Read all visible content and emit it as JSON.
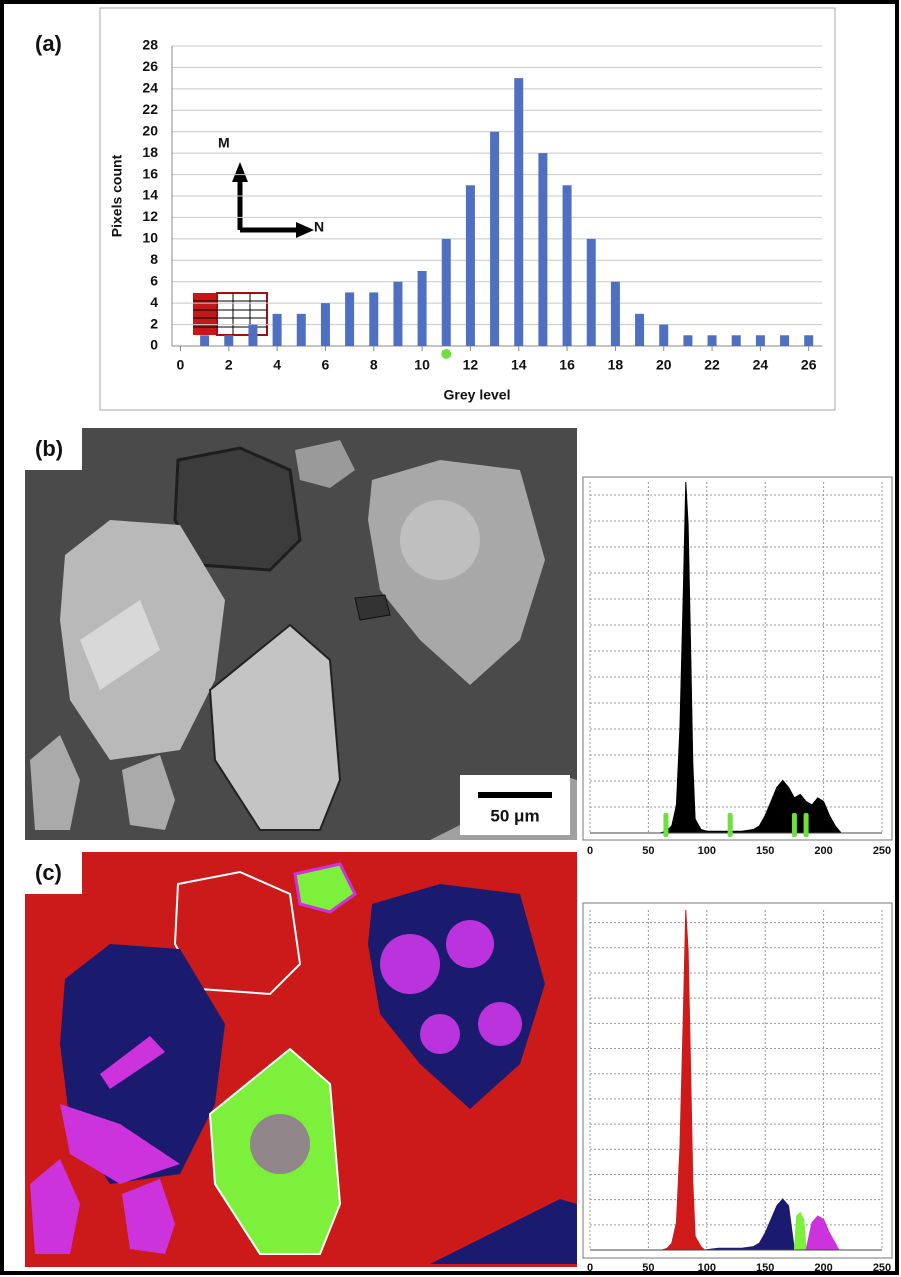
{
  "chart_data": [
    {
      "type": "bar",
      "panel_label": "(a)",
      "xlabel": "Grey level",
      "ylabel": "Pixels count",
      "annotations": [
        "M",
        "N"
      ],
      "x": [
        1,
        2,
        3,
        4,
        5,
        6,
        7,
        8,
        9,
        10,
        11,
        12,
        13,
        14,
        15,
        16,
        17,
        18,
        19,
        20,
        21,
        22,
        23,
        24,
        25,
        26
      ],
      "values": [
        1,
        1,
        2,
        3,
        3,
        4,
        5,
        5,
        6,
        7,
        10,
        15,
        20,
        25,
        18,
        15,
        10,
        6,
        3,
        2,
        1,
        1,
        1,
        1,
        1,
        1
      ],
      "color": "#4f6fc0",
      "xlim": [
        -0.35,
        26.55
      ],
      "ylim": [
        0,
        28
      ],
      "xticks": [
        0,
        2,
        4,
        6,
        8,
        10,
        12,
        14,
        16,
        18,
        20,
        22,
        24,
        26
      ],
      "yticks": [
        0,
        2,
        4,
        6,
        8,
        10,
        12,
        14,
        16,
        18,
        20,
        22,
        24,
        26,
        28
      ],
      "grid": true,
      "highlight_x": 11,
      "highlight_color": "#6ee03a"
    },
    {
      "type": "area",
      "xlim": [
        0,
        250
      ],
      "ylim": [
        0,
        100
      ],
      "xticks": [
        0,
        50,
        100,
        150,
        200,
        250
      ],
      "grid": true,
      "series": [
        {
          "color": "#000000",
          "x": [
            60,
            65,
            70,
            74,
            77,
            80,
            82,
            84,
            86,
            88,
            90,
            95,
            100,
            110,
            120,
            130,
            140,
            145,
            150,
            155,
            160,
            165,
            170,
            175,
            180,
            185,
            190,
            195,
            200,
            205,
            210,
            215
          ],
          "values": [
            0,
            0.5,
            2,
            8,
            30,
            70,
            100,
            88,
            55,
            20,
            4,
            1,
            0.5,
            0.5,
            0.5,
            0.5,
            1,
            2,
            5,
            9,
            13,
            15,
            13,
            10,
            11,
            9,
            8,
            10,
            9,
            5,
            2,
            0
          ]
        }
      ],
      "thresholds": [
        65,
        120,
        175,
        185
      ],
      "threshold_color": "#6ee03a"
    },
    {
      "type": "area",
      "xlim": [
        0,
        250
      ],
      "ylim": [
        0,
        100
      ],
      "xticks": [
        0,
        50,
        100,
        150,
        200,
        250
      ],
      "grid": true,
      "series": [
        {
          "color": "#d01a1a",
          "x": [
            62,
            66,
            70,
            74,
            77,
            80,
            82,
            84,
            86,
            88,
            90,
            95,
            98
          ],
          "values": [
            0,
            0.5,
            2,
            8,
            30,
            70,
            100,
            88,
            55,
            20,
            4,
            1,
            0
          ]
        },
        {
          "color": "#1a1a6e",
          "x": [
            98,
            110,
            120,
            130,
            140,
            145,
            150,
            155,
            160,
            165,
            170,
            175
          ],
          "values": [
            0,
            0.5,
            0.5,
            0.5,
            1,
            2,
            5,
            9,
            13,
            15,
            13,
            0
          ]
        },
        {
          "color": "#7cf03a",
          "x": [
            175,
            177,
            180,
            183,
            185
          ],
          "values": [
            0,
            10,
            11,
            9,
            0
          ]
        },
        {
          "color": "#cc33dd",
          "x": [
            185,
            190,
            195,
            200,
            205,
            210,
            213
          ],
          "values": [
            0,
            8,
            10,
            9,
            5,
            2,
            0
          ]
        }
      ]
    }
  ],
  "images": [
    {
      "panel_label": "(b)",
      "scale_bar_label": "50 μm"
    },
    {
      "panel_label": "(c)"
    }
  ]
}
